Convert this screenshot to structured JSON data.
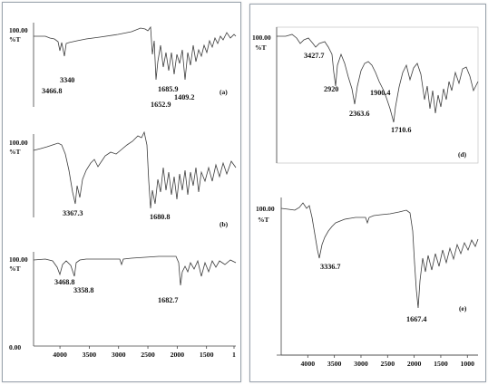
{
  "chart_data": [
    {
      "type": "line",
      "panel_label": "(a)",
      "y_top_label": "100.00",
      "ylabel": "%T",
      "peak_labels": [
        {
          "x": 3466.8,
          "text": "3466.8"
        },
        {
          "x": 3340,
          "text": "3340"
        },
        {
          "x": 1685.9,
          "text": "1685.9"
        },
        {
          "x": 1652.9,
          "text": "1652.9"
        },
        {
          "x": 1409.2,
          "text": "1409.2"
        }
      ]
    },
    {
      "type": "line",
      "panel_label": "(b)",
      "y_top_label": "100.00",
      "ylabel": "%T",
      "peak_labels": [
        {
          "x": 3367.3,
          "text": "3367.3"
        },
        {
          "x": 1680.8,
          "text": "1680.8"
        }
      ]
    },
    {
      "type": "line",
      "panel_label": "",
      "y_top_label": "100.00",
      "y_bottom_label": "0.00",
      "ylabel": "%T",
      "xlim": [
        4450,
        1000
      ],
      "x_ticks": [
        "4000",
        "3500",
        "3000",
        "2500",
        "2000",
        "1500",
        "1"
      ],
      "peak_labels": [
        {
          "x": 3468.8,
          "text": "3468.8"
        },
        {
          "x": 3358.8,
          "text": "3358.8"
        },
        {
          "x": 1682.7,
          "text": "1682.7"
        }
      ]
    },
    {
      "type": "line",
      "panel_label": "(d)",
      "y_top_label": "100.00",
      "ylabel": "%T",
      "peak_labels": [
        {
          "x": 3427.7,
          "text": "3427.7"
        },
        {
          "x": 2920,
          "text": "2920"
        },
        {
          "x": 2363.6,
          "text": "2363.6"
        },
        {
          "x": 1900.4,
          "text": "1900.4"
        },
        {
          "x": 1710.6,
          "text": "1710.6"
        }
      ]
    },
    {
      "type": "line",
      "panel_label": "(e)",
      "y_top_label": "100.00",
      "ylabel": "%T",
      "xlim": [
        4500,
        800
      ],
      "x_ticks": [
        "4000",
        "3500",
        "3000",
        "2500",
        "2000",
        "1500",
        "1000"
      ],
      "peak_labels": [
        {
          "x": 3336.7,
          "text": "3336.7"
        },
        {
          "x": 1667.4,
          "text": "1667.4"
        }
      ]
    }
  ]
}
